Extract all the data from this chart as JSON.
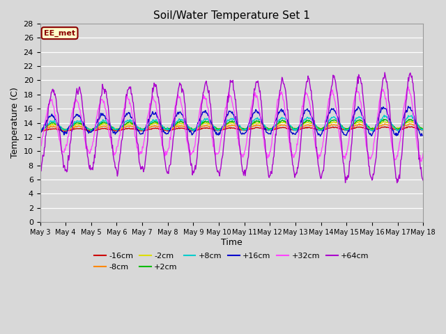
{
  "title": "Soil/Water Temperature Set 1",
  "xlabel": "Time",
  "ylabel": "Temperature (C)",
  "ylim": [
    0,
    28
  ],
  "yticks": [
    0,
    2,
    4,
    6,
    8,
    10,
    12,
    14,
    16,
    18,
    20,
    22,
    24,
    26,
    28
  ],
  "bg_color": "#d8d8d8",
  "legend_label": "EE_met",
  "series_colors": {
    "-16cm": "#cc0000",
    "-8cm": "#ff8800",
    "-2cm": "#dddd00",
    "+2cm": "#00bb00",
    "+8cm": "#00cccc",
    "+16cm": "#0000cc",
    "+32cm": "#ff44ff",
    "+64cm": "#aa00cc"
  },
  "plot_order": [
    "-16cm",
    "-8cm",
    "-2cm",
    "+2cm",
    "+8cm",
    "+16cm",
    "+32cm",
    "+64cm"
  ]
}
